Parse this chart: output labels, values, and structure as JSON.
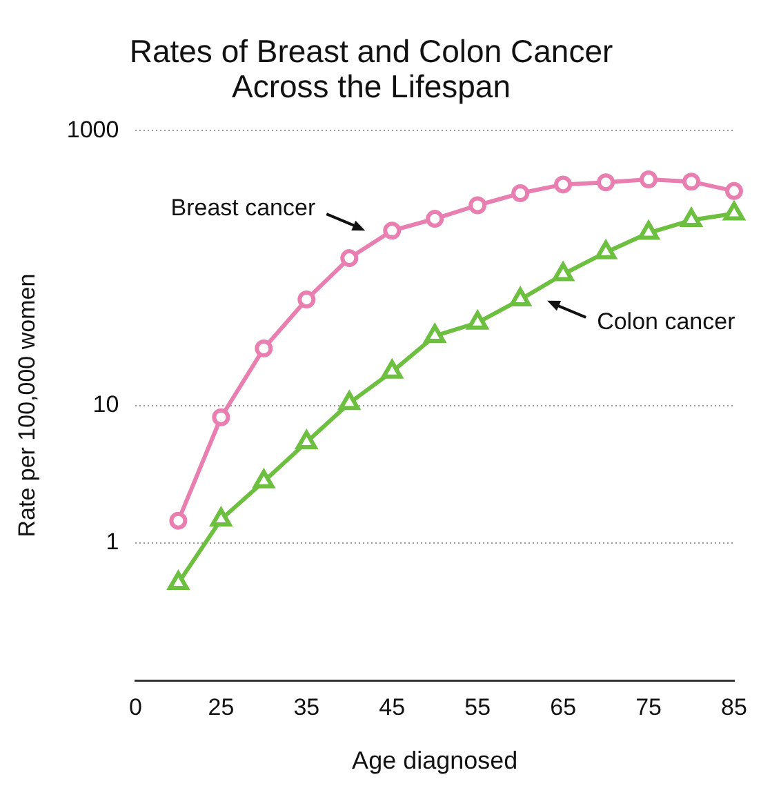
{
  "chart_data": {
    "type": "line",
    "title": "Rates of Breast and Colon Cancer\nAcross the Lifespan",
    "xlabel": "Age diagnosed",
    "ylabel": "Rate per 100,000 women",
    "categories": [
      "0",
      null,
      "25",
      null,
      "35",
      null,
      "45",
      null,
      "55",
      null,
      "65",
      null,
      "75",
      null,
      "85"
    ],
    "series": [
      {
        "color": "#e87fb0",
        "marker": "circle",
        "values": [
          null,
          1.45,
          8.2,
          26,
          59,
          118,
          187,
          228,
          286,
          350,
          405,
          420,
          441,
          425,
          363
        ]
      },
      {
        "color": "#6cbf3f",
        "marker": "triangle",
        "values": [
          null,
          0.51,
          1.48,
          2.8,
          5.4,
          10.4,
          17.6,
          32,
          40,
          59,
          90,
          130,
          180,
          223,
          249
        ]
      }
    ],
    "ylim": [
      0.1,
      1000
    ],
    "yticks": [
      1,
      10,
      1000
    ],
    "log": "y",
    "grid": "y",
    "legend": false,
    "line_style": "solid",
    "annotations": [
      "Breast cancer",
      "Colon cancer"
    ]
  }
}
